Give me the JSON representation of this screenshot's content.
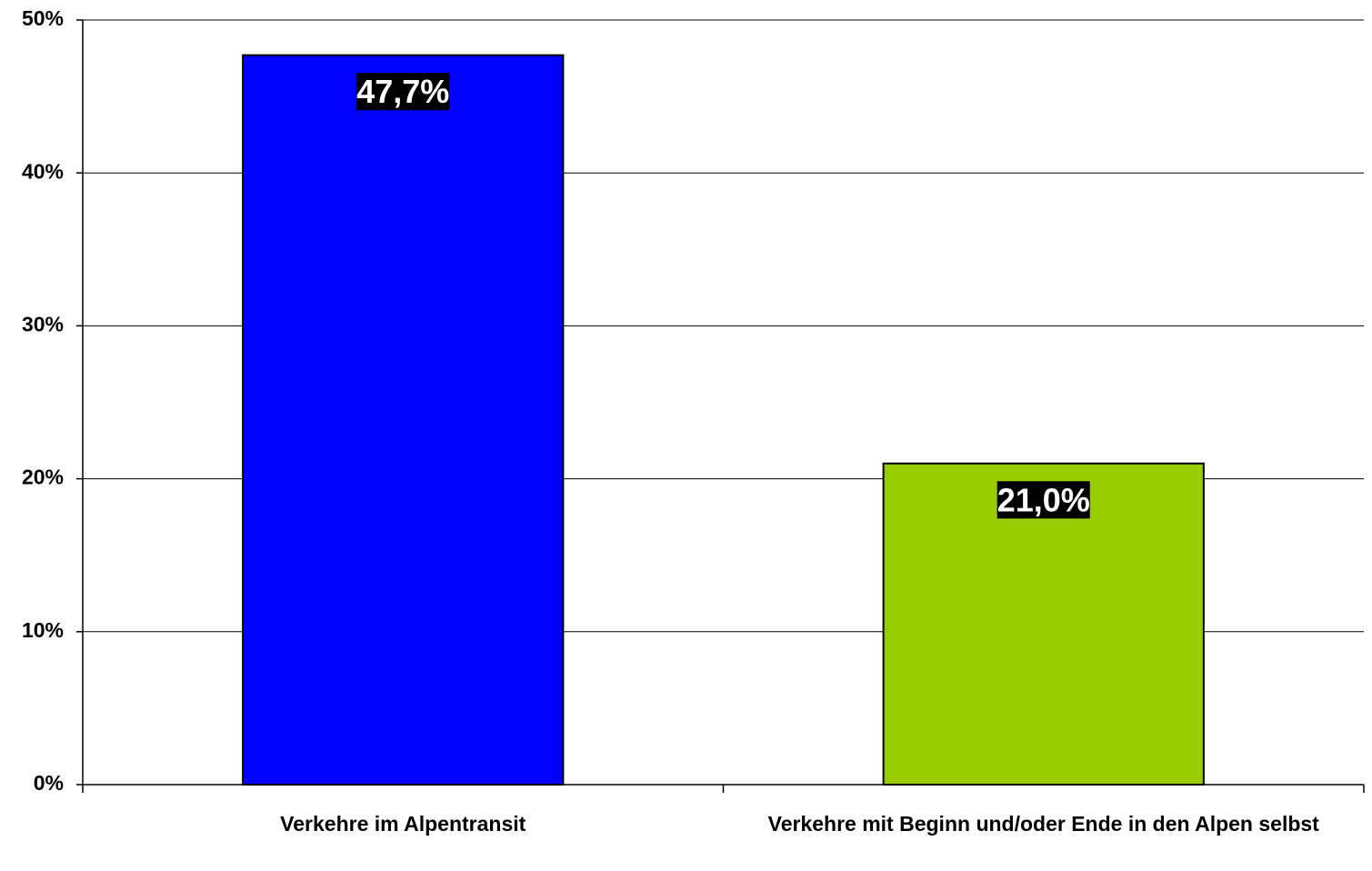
{
  "chart_data": {
    "type": "bar",
    "categories": [
      "Verkehre im Alpentransit",
      "Verkehre mit Beginn und/oder Ende in den Alpen selbst"
    ],
    "values": [
      47.7,
      21.0
    ],
    "value_labels": [
      "47,7%",
      "21,0%"
    ],
    "colors": [
      "#0000ff",
      "#99cc00"
    ],
    "ylim": [
      0,
      50
    ],
    "yticks": [
      {
        "value": 0,
        "label": "0%"
      },
      {
        "value": 10,
        "label": "10%"
      },
      {
        "value": 20,
        "label": "20%"
      },
      {
        "value": 30,
        "label": "30%"
      },
      {
        "value": 40,
        "label": "40%"
      },
      {
        "value": 50,
        "label": "50%"
      }
    ],
    "grid": true
  }
}
